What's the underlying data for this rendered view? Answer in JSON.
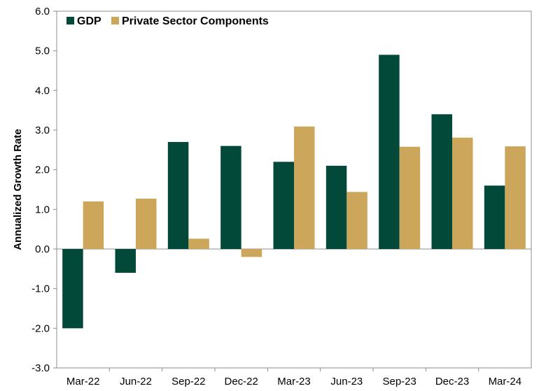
{
  "chart_data": {
    "type": "bar",
    "title": "",
    "xlabel": "",
    "ylabel": "Annualized Growth Rate",
    "ylim": [
      -3.0,
      6.0
    ],
    "yticks": [
      "-3.0",
      "-2.0",
      "-1.0",
      "0.0",
      "1.0",
      "2.0",
      "3.0",
      "4.0",
      "5.0",
      "6.0"
    ],
    "categories": [
      "Mar-22",
      "Jun-22",
      "Sep-22",
      "Dec-22",
      "Mar-23",
      "Jun-23",
      "Sep-23",
      "Dec-23",
      "Mar-24"
    ],
    "series": [
      {
        "name": "GDP",
        "color": "#03493A",
        "values": [
          -2.0,
          -0.6,
          2.7,
          2.6,
          2.2,
          2.1,
          4.9,
          3.4,
          1.6
        ]
      },
      {
        "name": "Private Sector Components",
        "color": "#CCA65A",
        "values": [
          1.2,
          1.27,
          0.26,
          -0.2,
          3.09,
          1.44,
          2.58,
          2.81,
          2.59
        ]
      }
    ],
    "grid": false,
    "legend_position": "top-left"
  }
}
